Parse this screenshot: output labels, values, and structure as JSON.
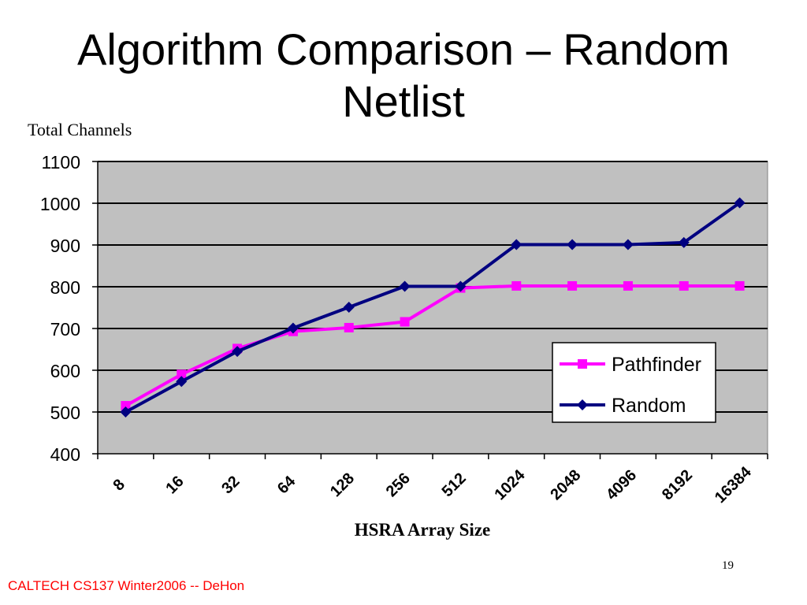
{
  "slide": {
    "title_line1": "Algorithm Comparison – Random",
    "title_line2": "Netlist",
    "footer": "CALTECH CS137 Winter2006 -- DeHon",
    "page_number": "19"
  },
  "chart_data": {
    "type": "line",
    "title": "",
    "ylabel": "Total Channels",
    "xlabel": "HSRA Array Size",
    "categories": [
      "8",
      "16",
      "32",
      "64",
      "128",
      "256",
      "512",
      "1024",
      "2048",
      "4096",
      "8192",
      "16384"
    ],
    "ylim": [
      400,
      1100
    ],
    "yticks": [
      400,
      500,
      600,
      700,
      800,
      900,
      1000,
      1100
    ],
    "grid": true,
    "legend_position": "lower-right",
    "plot_background": "#c0c0c0",
    "series": [
      {
        "name": "Pathfinder",
        "color": "#ff00ff",
        "marker": "square",
        "values": [
          515,
          590,
          652,
          693,
          702,
          716,
          797,
          802,
          802,
          802,
          802,
          802
        ]
      },
      {
        "name": "Random",
        "color": "#000080",
        "marker": "diamond",
        "values": [
          500,
          573,
          645,
          701,
          751,
          801,
          801,
          901,
          901,
          901,
          906,
          1001
        ]
      }
    ]
  }
}
